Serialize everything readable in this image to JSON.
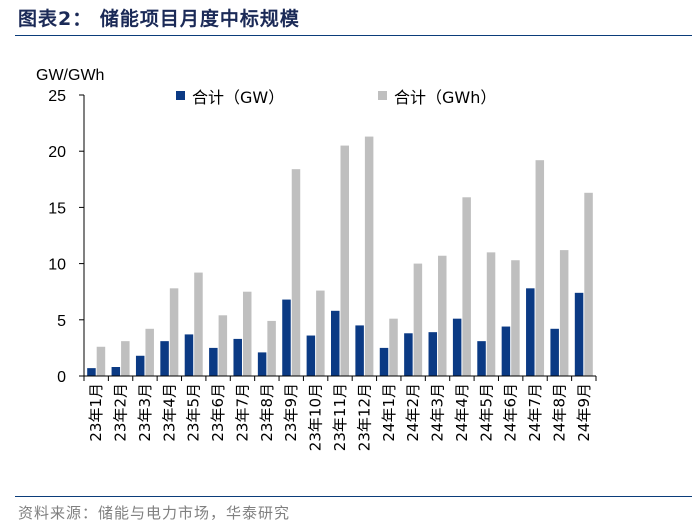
{
  "header": {
    "title": "图表2：  储能项目月度中标规模"
  },
  "footer": {
    "source": "资料来源：储能与电力市场，华泰研究"
  },
  "chart_data": {
    "type": "bar",
    "ylabel": "GW/GWh",
    "ylim": [
      0,
      25
    ],
    "yticks": [
      0,
      5,
      10,
      15,
      20,
      25
    ],
    "categories": [
      "23年1月",
      "23年2月",
      "23年3月",
      "23年4月",
      "23年5月",
      "23年6月",
      "23年7月",
      "23年8月",
      "23年9月",
      "23年10月",
      "23年11月",
      "23年12月",
      "24年1月",
      "24年2月",
      "24年3月",
      "24年4月",
      "24年5月",
      "24年6月",
      "24年7月",
      "24年8月",
      "24年9月"
    ],
    "series": [
      {
        "name": "合计（GW）",
        "color": "#0b3a84",
        "values": [
          0.7,
          0.8,
          1.8,
          3.1,
          3.7,
          2.5,
          3.3,
          2.1,
          6.8,
          3.6,
          5.8,
          4.5,
          2.5,
          3.8,
          3.9,
          5.1,
          3.1,
          4.4,
          7.8,
          4.2,
          7.4
        ]
      },
      {
        "name": "合计（GWh）",
        "color": "#bfbfbf",
        "values": [
          2.6,
          3.1,
          4.2,
          7.8,
          9.2,
          5.4,
          7.5,
          4.9,
          18.4,
          7.6,
          20.5,
          21.3,
          5.1,
          10.0,
          10.7,
          15.9,
          11.0,
          10.3,
          19.2,
          11.2,
          16.3
        ]
      }
    ]
  }
}
